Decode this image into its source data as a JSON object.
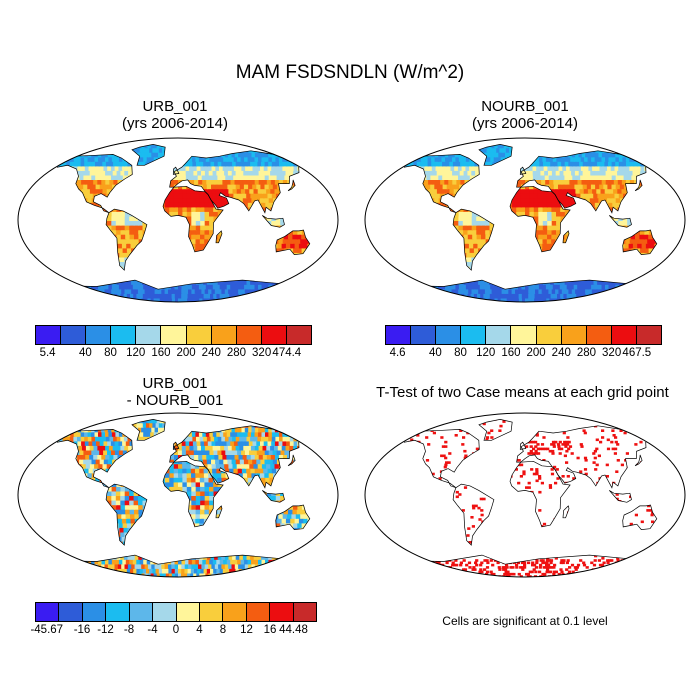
{
  "main_title": "MAM FSDSNDLN (W/m^2)",
  "panels": [
    {
      "id": "urb",
      "title_line1": "URB_001",
      "title_line2": "(yrs 2006-2014)",
      "colors": [
        "#3a1cf2",
        "#2e5cd8",
        "#2b8fe6",
        "#1bbcf0",
        "#a5d8ea",
        "#fff59a",
        "#f9ce3c",
        "#f9a11b",
        "#f45d11",
        "#ec0d10",
        "#c82a2a"
      ],
      "tick_labels": [
        "5.4",
        "40",
        "80",
        "120",
        "160",
        "200",
        "240",
        "280",
        "320",
        "474.4"
      ],
      "field": "climatology"
    },
    {
      "id": "nourb",
      "title_line1": "NOURB_001",
      "title_line2": "(yrs 2006-2014)",
      "colors": [
        "#3a1cf2",
        "#2e5cd8",
        "#2b8fe6",
        "#1bbcf0",
        "#a5d8ea",
        "#fff59a",
        "#f9ce3c",
        "#f9a11b",
        "#f45d11",
        "#ec0d10",
        "#c82a2a"
      ],
      "tick_labels": [
        "4.6",
        "40",
        "80",
        "120",
        "160",
        "200",
        "240",
        "280",
        "320",
        "467.5"
      ],
      "field": "climatology"
    },
    {
      "id": "diff",
      "title_line1": "URB_001",
      "title_line2": "- NOURB_001",
      "colors": [
        "#3a1cf2",
        "#2e5cd8",
        "#2b8fe6",
        "#1bbcf0",
        "#5db7ea",
        "#a5d8ea",
        "#fff59a",
        "#f9ce3c",
        "#f9a11b",
        "#f45d11",
        "#ec0d10",
        "#c82a2a"
      ],
      "tick_labels": [
        "-45.67",
        "-16",
        "-12",
        "-8",
        "-4",
        "0",
        "4",
        "8",
        "12",
        "16",
        "44.48"
      ],
      "field": "difference"
    },
    {
      "id": "ttest",
      "title_line1": "T-Test of two Case means at each grid point",
      "note": "Cells are significant at 0.1 level",
      "field": "significance"
    }
  ]
}
